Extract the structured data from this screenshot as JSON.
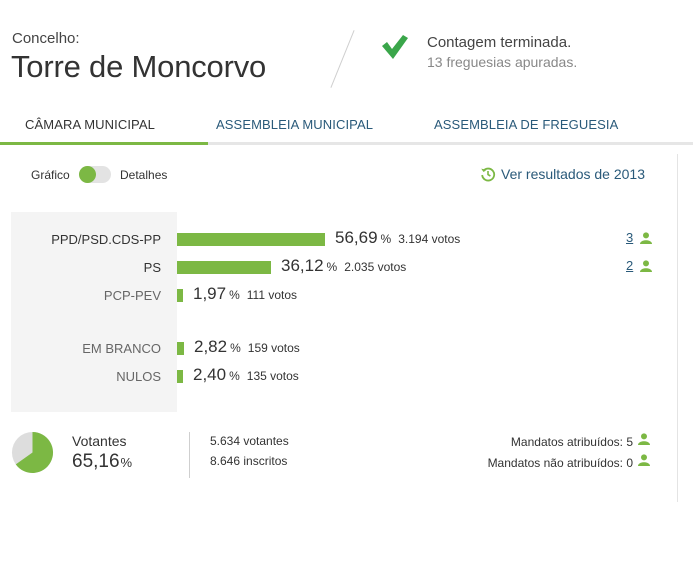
{
  "header": {
    "label": "Concelho:",
    "name": "Torre de Moncorvo",
    "status_main": "Contagem terminada.",
    "status_sub": "13 freguesias apuradas.",
    "check_icon_color": "#3aa64a"
  },
  "tabs": [
    {
      "label": "CÂMARA MUNICIPAL",
      "active": true
    },
    {
      "label": "ASSEMBLEIA MUNICIPAL",
      "active": false
    },
    {
      "label": "ASSEMBLEIA DE FREGUESIA",
      "active": false
    }
  ],
  "view_toggle": {
    "left_label": "Gráfico",
    "right_label": "Detalhes",
    "selected": "Gráfico"
  },
  "history_link": "Ver resultados de 2013",
  "results": [
    {
      "label": "PPD/PSD.CDS-PP",
      "percent": 56.69,
      "percent_text": "56,69",
      "votes_text": "3.194 votos",
      "mandates": "3"
    },
    {
      "label": "PS",
      "percent": 36.12,
      "percent_text": "36,12",
      "votes_text": "2.035 votos",
      "mandates": "2"
    },
    {
      "label": "PCP-PEV",
      "percent": 1.97,
      "percent_text": "1,97",
      "votes_text": "111 votos",
      "mandates": ""
    },
    {
      "label": "EM BRANCO",
      "percent": 2.82,
      "percent_text": "2,82",
      "votes_text": "159 votos",
      "mandates": ""
    },
    {
      "label": "NULOS",
      "percent": 2.4,
      "percent_text": "2,40",
      "votes_text": "135 votos",
      "mandates": ""
    }
  ],
  "percent_sign": "%",
  "summary": {
    "label": "Votantes",
    "percent": 65.16,
    "percent_text": "65,16",
    "percent_sign": "%",
    "voters": "5.634 votantes",
    "registered": "8.646 inscritos",
    "mandates_assigned": "Mandatos atribuídos: 5",
    "mandates_unassigned": "Mandatos não atribuídos: 0"
  },
  "colors": {
    "accent": "#7cb844",
    "link": "#2a5a7a",
    "pie_rest": "#dddddd"
  }
}
